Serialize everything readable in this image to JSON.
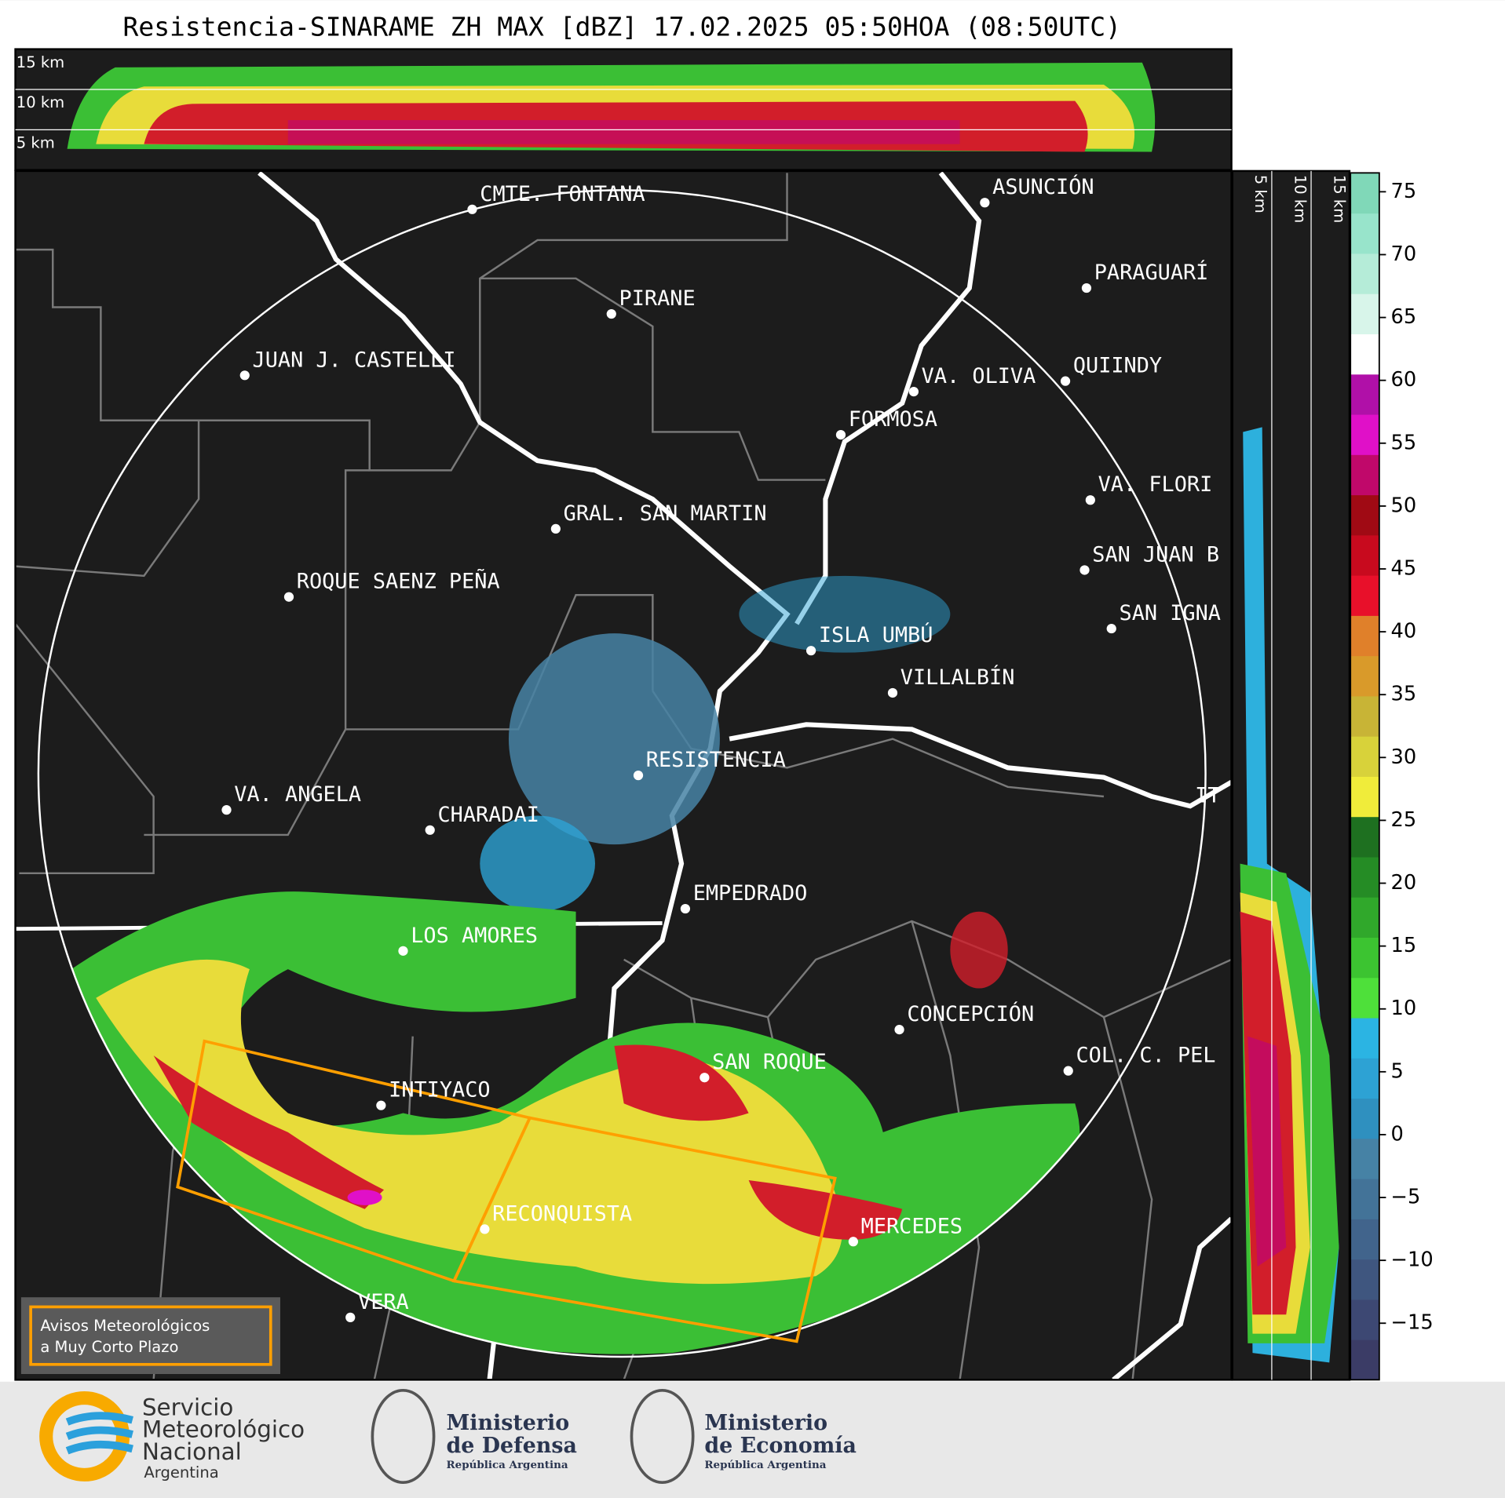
{
  "title": "Resistencia-SINARAME ZH MAX [dBZ] 17.02.2025 05:50HOA (08:50UTC)",
  "top_panel": {
    "labels": [
      "15 km",
      "10 km",
      "5 km"
    ]
  },
  "side_panel": {
    "labels": [
      "5 km",
      "10 km",
      "15 km"
    ]
  },
  "cities": [
    "CMTE. FONTANA",
    "ASUNCIÓN",
    "PIRANE",
    "PARAGUARÍ",
    "JUAN J. CASTELLI",
    "VA. OLIVA",
    "QUIINDY",
    "FORMOSA",
    "VA. FLORI",
    "GRAL. SAN MARTIN",
    "SAN JUAN B",
    "ROQUE SAENZ PEÑA",
    "SAN IGNA",
    "ISLA UMBÚ",
    "VILLALBÍN",
    "RESISTENCIA",
    "VA. ANGELA",
    "CHARADAI",
    "IT",
    "EMPEDRADO",
    "LOS AMORES",
    "CONCEPCIÓN",
    "SAN ROQUE",
    "COL. C. PEL",
    "INTIYACO",
    "RECONQUISTA",
    "MERCEDES",
    "VERA"
  ],
  "warning_box": {
    "lines": [
      "Avisos Meteorológicos",
      "a Muy Corto Plazo"
    ]
  },
  "colorbar": {
    "lim": [
      -19.5,
      76.5
    ],
    "ticks": [
      75,
      70,
      65,
      60,
      55,
      50,
      45,
      40,
      35,
      30,
      25,
      20,
      15,
      10,
      5,
      0,
      {
        "value": -5,
        "label": "−5"
      },
      {
        "value": -10,
        "label": "−10"
      },
      {
        "value": -15,
        "label": "−15"
      }
    ],
    "colors": [
      "#3b3c66",
      "#3d4873",
      "#3f567f",
      "#41648c",
      "#437398",
      "#4682a5",
      "#2f90bf",
      "#2da2d4",
      "#2bb4e3",
      "#4ee03a",
      "#3cc431",
      "#30a82b",
      "#258c25",
      "#1e7020",
      "#f0ec3a",
      "#d8d23a",
      "#c8b436",
      "#d99a2a",
      "#e0802a",
      "#e8102a",
      "#c80a1e",
      "#a00a14",
      "#c0086a",
      "#e010c8",
      "#b010a8",
      "#ffffff",
      "#d8f5ea",
      "#b5ecd8",
      "#98e4cb",
      "#80d8b8"
    ]
  },
  "footer": {
    "smn": [
      "Servicio",
      "Meteorológico",
      "Nacional",
      "Argentina"
    ],
    "defensa": [
      "Ministerio",
      "de Defensa",
      "República Argentina"
    ],
    "economia": [
      "Ministerio",
      "de Economía",
      "República Argentina"
    ]
  }
}
